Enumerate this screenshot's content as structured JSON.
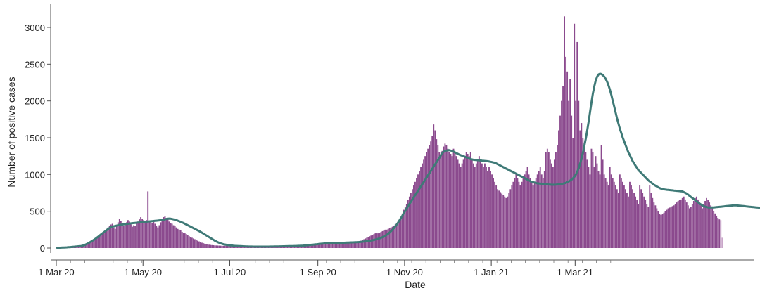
{
  "chart_data": {
    "type": "bar",
    "xlabel": "Date",
    "ylabel": "Number of positive cases",
    "ylim": [
      0,
      3200
    ],
    "yticks": [
      0,
      500,
      1000,
      1500,
      2000,
      2500,
      3000
    ],
    "xticks": [
      {
        "label": "1 Mar 20",
        "date": "2020-03-01"
      },
      {
        "label": "1 May 20",
        "date": "2020-05-01"
      },
      {
        "label": "1 Jul 20",
        "date": "2020-07-01"
      },
      {
        "label": "1 Sep 20",
        "date": "2020-09-01"
      },
      {
        "label": "1 Nov 20",
        "date": "2020-11-01"
      },
      {
        "label": "1 Jan 21",
        "date": "2021-01-01"
      },
      {
        "label": "1 Mar 21",
        "date": "2021-03-01"
      }
    ],
    "grid": false,
    "legend": "none",
    "colors": {
      "bars": "#8b4a8e",
      "bars_light": "#c9a6c9",
      "smoothed_line": "#3f7a77"
    },
    "x_start": "2020-03-01",
    "series": [
      {
        "type": "bar",
        "x_start": "2020-03-01",
        "values": [
          5,
          5,
          5,
          7,
          8,
          9,
          10,
          12,
          12,
          14,
          15,
          18,
          20,
          22,
          25,
          27,
          27,
          28,
          33,
          40,
          50,
          60,
          70,
          80,
          90,
          100,
          110,
          120,
          130,
          140,
          160,
          180,
          200,
          220,
          240,
          260,
          280,
          300,
          320,
          330,
          280,
          260,
          300,
          350,
          400,
          370,
          330,
          300,
          320,
          350,
          380,
          360,
          320,
          290,
          310,
          300,
          330,
          360,
          390,
          420,
          400,
          380,
          360,
          380,
          770,
          360,
          350,
          340,
          380,
          330,
          300,
          280,
          310,
          350,
          380,
          420,
          430,
          410,
          390,
          360,
          340,
          330,
          310,
          300,
          280,
          260,
          250,
          240,
          220,
          210,
          200,
          190,
          175,
          160,
          150,
          140,
          130,
          120,
          110,
          100,
          90,
          80,
          72,
          65,
          60,
          55,
          50,
          45,
          42,
          40,
          38,
          36,
          35,
          34,
          33,
          32,
          31,
          30,
          30,
          30,
          30,
          28,
          27,
          26,
          25,
          25,
          24,
          23,
          22,
          22,
          21,
          20,
          20,
          20,
          20,
          20,
          20,
          20,
          20,
          20,
          20,
          20,
          20,
          20,
          20,
          20,
          20,
          20,
          20,
          20,
          20,
          21,
          21,
          21,
          22,
          22,
          22,
          23,
          23,
          23,
          24,
          24,
          24,
          25,
          25,
          25,
          25,
          25,
          25,
          25,
          26,
          26,
          26,
          27,
          27,
          28,
          28,
          29,
          30,
          32,
          34,
          35,
          38,
          40,
          42,
          45,
          50,
          55,
          60,
          62,
          65,
          68,
          70,
          65,
          60,
          62,
          65,
          68,
          70,
          72,
          75,
          78,
          80,
          82,
          85,
          85,
          85,
          85,
          85,
          85,
          85,
          85,
          90,
          95,
          100,
          110,
          120,
          130,
          140,
          150,
          160,
          170,
          180,
          190,
          200,
          200,
          200,
          210,
          220,
          230,
          240,
          250,
          250,
          260,
          270,
          280,
          290,
          300,
          320,
          340,
          360,
          380,
          420,
          470,
          520,
          560,
          600,
          650,
          700,
          750,
          800,
          850,
          900,
          950,
          1000,
          1050,
          1100,
          1150,
          1200,
          1250,
          1300,
          1350,
          1400,
          1450,
          1520,
          1680,
          1600,
          1480,
          1400,
          1300,
          1250,
          1320,
          1380,
          1420,
          1400,
          1350,
          1300,
          1280,
          1250,
          1350,
          1300,
          1250,
          1200,
          1150,
          1100,
          1150,
          1200,
          1250,
          1300,
          1280,
          1250,
          1300,
          1200,
          1150,
          1100,
          1150,
          1200,
          1250,
          1200,
          1150,
          1100,
          1150,
          1100,
          1050,
          1100,
          1050,
          1000,
          950,
          900,
          850,
          800,
          780,
          760,
          740,
          720,
          700,
          680,
          700,
          750,
          800,
          850,
          900,
          950,
          1000,
          950,
          900,
          850,
          900,
          950,
          1000,
          1050,
          1100,
          1000,
          950,
          900,
          850,
          900,
          950,
          1000,
          1050,
          1100,
          1000,
          950,
          1050,
          1300,
          1350,
          1300,
          1200,
          1150,
          1100,
          1200,
          1300,
          1400,
          1600,
          1800,
          2000,
          2200,
          3150,
          2600,
          2400,
          2000,
          2300,
          1800,
          1500,
          3050,
          2000,
          2800,
          2000,
          1600,
          1700,
          1500,
          1400,
          1300,
          1200,
          1100,
          1000,
          1350,
          1300,
          1100,
          1250,
          1150,
          1050,
          1000,
          1400,
          1200,
          1000,
          950,
          900,
          850,
          1100,
          1000,
          950,
          900,
          850,
          800,
          750,
          1000,
          950,
          900,
          850,
          800,
          750,
          700,
          900,
          850,
          800,
          750,
          700,
          650,
          600,
          850,
          800,
          750,
          700,
          650,
          600,
          560,
          850,
          750,
          680,
          620,
          580,
          540,
          500,
          460,
          450,
          460,
          480,
          500,
          520,
          540,
          550,
          560,
          570,
          580,
          600,
          620,
          640,
          650,
          660,
          680,
          700,
          660,
          620,
          580,
          540,
          560,
          600,
          640,
          680,
          700,
          660,
          620,
          580,
          540,
          600,
          640,
          680,
          650,
          620,
          580,
          540,
          500,
          470,
          440,
          410,
          390,
          380,
          140
        ]
      },
      {
        "type": "line",
        "name": "smoothed",
        "x_start": "2020-03-01",
        "values": [
          5,
          5,
          5,
          6,
          7,
          8,
          9,
          10,
          11,
          12,
          14,
          16,
          18,
          20,
          22,
          24,
          26,
          28,
          32,
          38,
          46,
          55,
          65,
          76,
          88,
          100,
          112,
          125,
          140,
          155,
          170,
          185,
          200,
          215,
          230,
          245,
          260,
          272,
          282,
          290,
          296,
          300,
          305,
          310,
          315,
          318,
          320,
          322,
          325,
          328,
          330,
          332,
          335,
          338,
          340,
          342,
          344,
          346,
          348,
          350,
          352,
          354,
          356,
          358,
          360,
          362,
          364,
          366,
          368,
          370,
          372,
          374,
          376,
          378,
          380,
          385,
          390,
          395,
          398,
          400,
          398,
          395,
          390,
          385,
          380,
          372,
          364,
          356,
          348,
          340,
          330,
          320,
          310,
          300,
          290,
          280,
          270,
          260,
          250,
          240,
          230,
          220,
          208,
          196,
          184,
          172,
          160,
          148,
          136,
          124,
          112,
          100,
          90,
          80,
          72,
          64,
          58,
          52,
          48,
          44,
          40,
          38,
          36,
          34,
          32,
          30,
          29,
          28,
          27,
          26,
          25,
          24,
          23,
          22,
          21,
          20,
          20,
          20,
          19,
          19,
          19,
          19,
          19,
          19,
          19,
          19,
          19,
          19,
          19,
          19,
          20,
          20,
          20,
          21,
          21,
          22,
          22,
          23,
          23,
          24,
          24,
          25,
          25,
          26,
          26,
          27,
          27,
          28,
          28,
          29,
          30,
          30,
          31,
          32,
          34,
          36,
          38,
          40,
          42,
          44,
          46,
          48,
          50,
          52,
          54,
          56,
          58,
          60,
          62,
          63,
          64,
          65,
          66,
          66,
          67,
          68,
          68,
          69,
          70,
          70,
          71,
          72,
          72,
          73,
          74,
          74,
          75,
          76,
          76,
          77,
          78,
          79,
          80,
          82,
          84,
          86,
          88,
          90,
          92,
          95,
          98,
          102,
          106,
          110,
          115,
          120,
          126,
          132,
          140,
          148,
          158,
          168,
          180,
          194,
          210,
          228,
          248,
          270,
          294,
          320,
          348,
          378,
          410,
          442,
          474,
          506,
          538,
          570,
          600,
          630,
          660,
          690,
          720,
          750,
          780,
          810,
          840,
          870,
          900,
          930,
          960,
          990,
          1020,
          1050,
          1080,
          1110,
          1140,
          1170,
          1200,
          1230,
          1260,
          1290,
          1310,
          1320,
          1325,
          1330,
          1330,
          1325,
          1320,
          1310,
          1300,
          1290,
          1280,
          1270,
          1262,
          1255,
          1248,
          1240,
          1232,
          1225,
          1218,
          1210,
          1205,
          1200,
          1198,
          1196,
          1194,
          1192,
          1190,
          1188,
          1186,
          1184,
          1182,
          1180,
          1176,
          1172,
          1168,
          1164,
          1160,
          1150,
          1140,
          1130,
          1120,
          1110,
          1100,
          1090,
          1080,
          1070,
          1060,
          1050,
          1040,
          1030,
          1020,
          1010,
          1000,
          990,
          980,
          970,
          960,
          950,
          940,
          930,
          920,
          910,
          900,
          895,
          890,
          885,
          880,
          878,
          876,
          874,
          872,
          870,
          868,
          866,
          864,
          862,
          860,
          860,
          861,
          862,
          864,
          866,
          868,
          872,
          876,
          880,
          888,
          896,
          906,
          918,
          932,
          950,
          972,
          1000,
          1040,
          1090,
          1150,
          1220,
          1300,
          1390,
          1490,
          1600,
          1720,
          1850,
          1980,
          2100,
          2200,
          2280,
          2330,
          2360,
          2370,
          2365,
          2350,
          2330,
          2300,
          2260,
          2210,
          2150,
          2080,
          2000,
          1920,
          1840,
          1760,
          1690,
          1620,
          1560,
          1500,
          1450,
          1400,
          1350,
          1300,
          1260,
          1220,
          1180,
          1150,
          1120,
          1090,
          1060,
          1040,
          1020,
          1000,
          980,
          960,
          940,
          920,
          905,
          890,
          875,
          860,
          848,
          836,
          825,
          815,
          808,
          802,
          798,
          795,
          792,
          790,
          788,
          786,
          784,
          782,
          780,
          778,
          776,
          774,
          772,
          770,
          760,
          750,
          740,
          725,
          710,
          695,
          680,
          665,
          650,
          635,
          620,
          606,
          592,
          580,
          570,
          562,
          556,
          552,
          550,
          550,
          551,
          552,
          554,
          556,
          558,
          560,
          562,
          564,
          566,
          568,
          570,
          572,
          574,
          576,
          578,
          580,
          580,
          580,
          578,
          576,
          574,
          572,
          570,
          568,
          566,
          564,
          562,
          560,
          558,
          556,
          554,
          552,
          550,
          548,
          546,
          544,
          540,
          536,
          530,
          520,
          505,
          490,
          470,
          450
        ]
      }
    ]
  }
}
